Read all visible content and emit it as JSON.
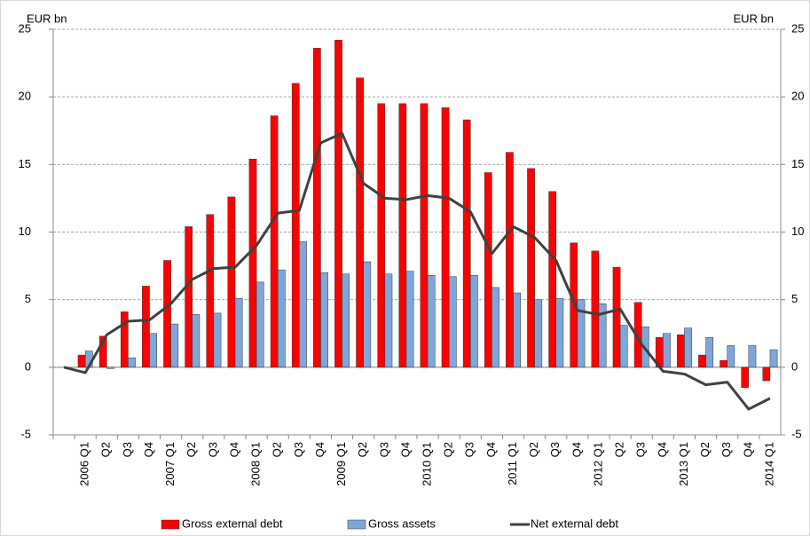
{
  "chart_data": {
    "type": "bar",
    "y_label": "EUR bn",
    "y2_label": "EUR bn",
    "categories": [
      null,
      "2006 Q1",
      "Q2",
      "Q3",
      "Q4",
      "2007 Q1",
      "Q2",
      "Q3",
      "Q4",
      "2008 Q1",
      "Q2",
      "Q3",
      "Q4",
      "2009 Q1",
      "Q2",
      "Q3",
      "Q4",
      "2010 Q1",
      "Q2",
      "Q3",
      "Q4",
      "2011 Q1",
      "Q2",
      "Q3",
      "Q4",
      "2012 Q1",
      "Q2",
      "Q3",
      "Q4",
      "2013 Q1",
      "Q2",
      "Q3",
      "Q4",
      "2014 Q1"
    ],
    "series": [
      {
        "name": "Gross external debt",
        "type": "bar",
        "color": "#ff0000",
        "values": [
          null,
          0.9,
          2.3,
          4.1,
          6.0,
          7.9,
          10.4,
          11.3,
          12.6,
          15.4,
          18.6,
          21.0,
          23.6,
          24.2,
          21.4,
          19.5,
          19.5,
          19.5,
          19.2,
          18.3,
          14.4,
          15.9,
          14.7,
          13.0,
          9.2,
          8.6,
          7.4,
          4.8,
          2.2,
          2.4,
          0.9,
          0.5,
          -1.5,
          -1.0
        ]
      },
      {
        "name": "Gross assets",
        "type": "bar",
        "color": "#7fa6d9",
        "values": [
          null,
          1.2,
          -0.1,
          0.7,
          2.5,
          3.2,
          3.9,
          4.0,
          5.1,
          6.3,
          7.2,
          9.3,
          7.0,
          6.9,
          7.8,
          6.9,
          7.1,
          6.8,
          6.7,
          6.8,
          5.9,
          5.5,
          5.0,
          5.1,
          5.0,
          4.7,
          3.1,
          3.0,
          2.5,
          2.9,
          2.2,
          1.6,
          1.6,
          1.3
        ]
      },
      {
        "name": "Net external debt",
        "type": "line",
        "color": "#404040",
        "values": [
          0,
          -0.4,
          2.4,
          3.4,
          3.5,
          4.7,
          6.5,
          7.3,
          7.4,
          9.0,
          11.4,
          11.6,
          16.6,
          17.3,
          13.6,
          12.5,
          12.4,
          12.7,
          12.5,
          11.5,
          8.4,
          10.4,
          9.6,
          7.9,
          4.2,
          3.9,
          4.3,
          1.7,
          -0.3,
          -0.5,
          -1.3,
          -1.1,
          -3.1,
          -2.3
        ]
      }
    ],
    "ylim": [
      -5,
      25
    ],
    "yticks": [
      -5,
      0,
      5,
      10,
      15,
      20,
      25
    ],
    "y2lim": [
      -5,
      25
    ],
    "y2ticks": [
      -5,
      0,
      5,
      10,
      15,
      20,
      25
    ],
    "grid": true
  }
}
